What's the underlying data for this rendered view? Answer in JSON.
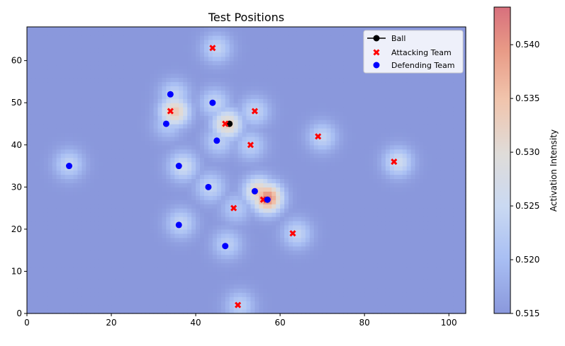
{
  "chart_data": {
    "type": "scatter",
    "title": "Test Positions",
    "xlabel": "",
    "ylabel": "",
    "xlim": [
      0,
      104
    ],
    "ylim": [
      0,
      68
    ],
    "x_ticks": [
      0,
      20,
      40,
      60,
      80,
      100
    ],
    "y_ticks": [
      0,
      10,
      20,
      30,
      40,
      50,
      60
    ],
    "background": "heatmap",
    "colormap": "coolwarm",
    "colorbar": {
      "label": "Activation Intensity",
      "min": 0.515,
      "max": 0.5435,
      "ticks": [
        0.515,
        0.52,
        0.525,
        0.53,
        0.535,
        0.54
      ],
      "tick_labels": [
        "0.515",
        "0.520",
        "0.525",
        "0.530",
        "0.535",
        "0.540"
      ]
    },
    "legend": {
      "position": "top-right"
    },
    "series": [
      {
        "name": "Ball",
        "marker": "circle-line",
        "color": "#000000",
        "points": [
          [
            48,
            45
          ]
        ]
      },
      {
        "name": "Attacking Team",
        "marker": "x",
        "color": "#ff0000",
        "points": [
          [
            44,
            63
          ],
          [
            34,
            48
          ],
          [
            54,
            48
          ],
          [
            47,
            45
          ],
          [
            69,
            42
          ],
          [
            53,
            40
          ],
          [
            87,
            36
          ],
          [
            56,
            27
          ],
          [
            49,
            25
          ],
          [
            63,
            19
          ],
          [
            50,
            2
          ]
        ]
      },
      {
        "name": "Defending Team",
        "marker": "circle",
        "color": "#0000ff",
        "points": [
          [
            34,
            52
          ],
          [
            44,
            50
          ],
          [
            33,
            45
          ],
          [
            45,
            41
          ],
          [
            10,
            35
          ],
          [
            36,
            35
          ],
          [
            43,
            30
          ],
          [
            54,
            29
          ],
          [
            57,
            27
          ],
          [
            36,
            21
          ],
          [
            47,
            16
          ]
        ]
      }
    ],
    "hotspots": [
      {
        "x": 45,
        "y": 63,
        "v": 0.524
      },
      {
        "x": 35,
        "y": 52,
        "v": 0.524
      },
      {
        "x": 35,
        "y": 48,
        "v": 0.534
      },
      {
        "x": 44.5,
        "y": 50,
        "v": 0.524
      },
      {
        "x": 54,
        "y": 48,
        "v": 0.524
      },
      {
        "x": 47.5,
        "y": 45,
        "v": 0.533
      },
      {
        "x": 33.5,
        "y": 45,
        "v": 0.522
      },
      {
        "x": 45.5,
        "y": 41,
        "v": 0.523
      },
      {
        "x": 70,
        "y": 42,
        "v": 0.524
      },
      {
        "x": 53,
        "y": 40,
        "v": 0.523
      },
      {
        "x": 10,
        "y": 35.5,
        "v": 0.524
      },
      {
        "x": 37,
        "y": 35,
        "v": 0.526
      },
      {
        "x": 88,
        "y": 36,
        "v": 0.526
      },
      {
        "x": 43.5,
        "y": 30,
        "v": 0.524
      },
      {
        "x": 55,
        "y": 29,
        "v": 0.534
      },
      {
        "x": 57,
        "y": 27.5,
        "v": 0.542
      },
      {
        "x": 49.5,
        "y": 25,
        "v": 0.522
      },
      {
        "x": 64,
        "y": 19,
        "v": 0.524
      },
      {
        "x": 36.5,
        "y": 21.5,
        "v": 0.524
      },
      {
        "x": 47.5,
        "y": 16.5,
        "v": 0.523
      },
      {
        "x": 50.5,
        "y": 2,
        "v": 0.523
      }
    ]
  }
}
